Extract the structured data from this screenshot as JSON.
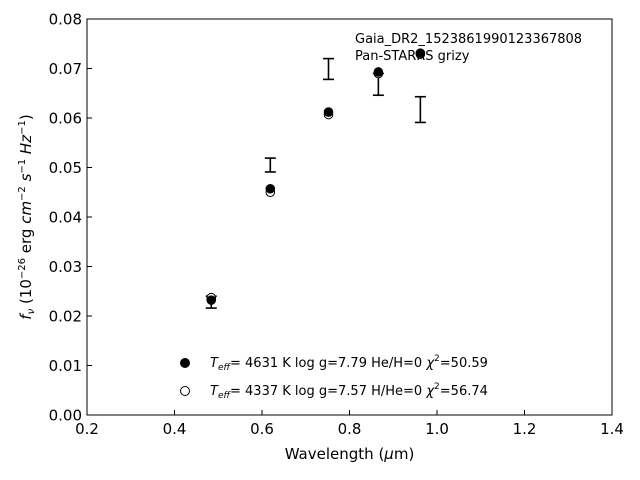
{
  "chart_data": {
    "type": "scatter",
    "xlabel": "Wavelength (μm)",
    "ylabel": "f_ν (10^-26 erg cm^-2 s^-1 Hz^-1)",
    "xlim": [
      0.2,
      1.4
    ],
    "ylim": [
      0.0,
      0.08
    ],
    "x_ticks": [
      "0.2",
      "0.4",
      "0.6",
      "0.8",
      "1.0",
      "1.2",
      "1.4"
    ],
    "y_ticks": [
      "0.00",
      "0.01",
      "0.02",
      "0.03",
      "0.04",
      "0.05",
      "0.06",
      "0.07",
      "0.08"
    ],
    "annotations": [
      "Gaia_DR2_1523861990123367808",
      "Pan-STARRS grizy"
    ],
    "grid": false,
    "legend_position": "bottom-center",
    "observed": {
      "x": [
        0.484,
        0.619,
        0.752,
        0.866,
        0.962
      ],
      "y": [
        0.0228,
        0.0505,
        0.0699,
        0.0668,
        0.0617
      ],
      "yerr": [
        0.0012,
        0.0014,
        0.0021,
        0.0022,
        0.0026
      ]
    },
    "series": [
      {
        "label_temp": "4631 K",
        "label_logg": "log g=7.79",
        "label_comp": "He/H=0",
        "label_chi": "=50.59",
        "marker": "filled",
        "x": [
          0.484,
          0.619,
          0.752,
          0.866,
          0.962
        ],
        "y": [
          0.0232,
          0.0457,
          0.0612,
          0.0693,
          0.0731
        ]
      },
      {
        "label_temp": "4337 K",
        "label_logg": "log g=7.57",
        "label_comp": "H/He=0",
        "label_chi": "=56.74",
        "marker": "open",
        "x": [
          0.484,
          0.619,
          0.752,
          0.866,
          0.962
        ],
        "y": [
          0.0237,
          0.045,
          0.0607,
          0.069,
          0.0729
        ]
      }
    ],
    "colors": {
      "marker": "#000000",
      "axis": "#000000"
    }
  }
}
